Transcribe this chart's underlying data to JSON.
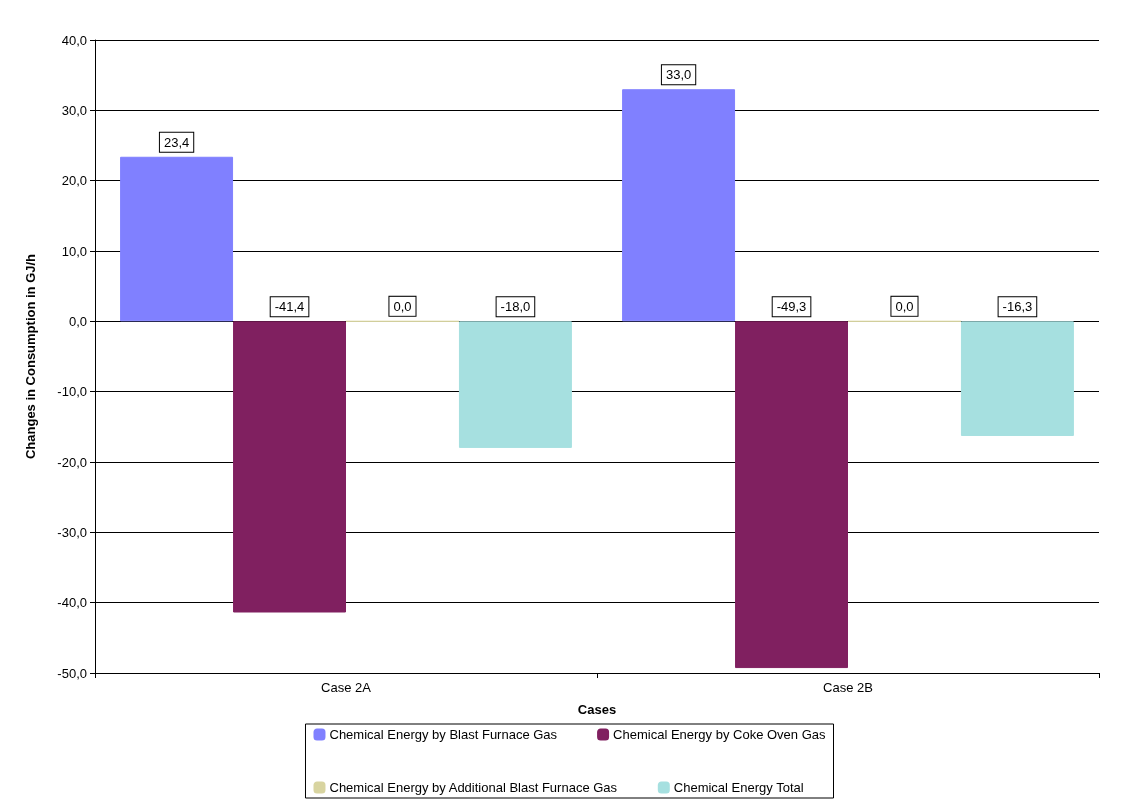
{
  "chart_data": {
    "type": "bar",
    "xlabel": "Cases",
    "ylabel": "Changes in Consumption in GJ/h",
    "categories": [
      "Case 2A",
      "Case 2B"
    ],
    "series": [
      {
        "name": "Chemical Energy by Blast Furnace Gas",
        "color": "#8080ff",
        "values": [
          23.4,
          33.0
        ],
        "value_labels": [
          "23,4",
          "33,0"
        ]
      },
      {
        "name": "Chemical Energy by Coke Oven Gas",
        "color": "#802060",
        "values": [
          -41.4,
          -49.3
        ],
        "value_labels": [
          "-41,4",
          "-49,3"
        ]
      },
      {
        "name": "Chemical Energy by Additional Blast Furnace Gas",
        "color": "#d8d4a0",
        "values": [
          0.0,
          0.0
        ],
        "value_labels": [
          "0,0",
          "0,0"
        ]
      },
      {
        "name": "Chemical Energy Total",
        "color": "#a6e0e0",
        "values": [
          -18.0,
          -16.3
        ],
        "value_labels": [
          "-18,0",
          "-16,3"
        ]
      }
    ],
    "ylim": [
      -50,
      40
    ],
    "yticks": [
      {
        "value": -50,
        "label": "-50,0"
      },
      {
        "value": -40,
        "label": "-40,0"
      },
      {
        "value": -30,
        "label": "-30,0"
      },
      {
        "value": -20,
        "label": "-20,0"
      },
      {
        "value": -10,
        "label": "-10,0"
      },
      {
        "value": 0,
        "label": "0,0"
      },
      {
        "value": 10,
        "label": "10,0"
      },
      {
        "value": 20,
        "label": "20,0"
      },
      {
        "value": 30,
        "label": "30,0"
      },
      {
        "value": 40,
        "label": "40,0"
      }
    ],
    "grid": "y",
    "legend": "bottom"
  }
}
